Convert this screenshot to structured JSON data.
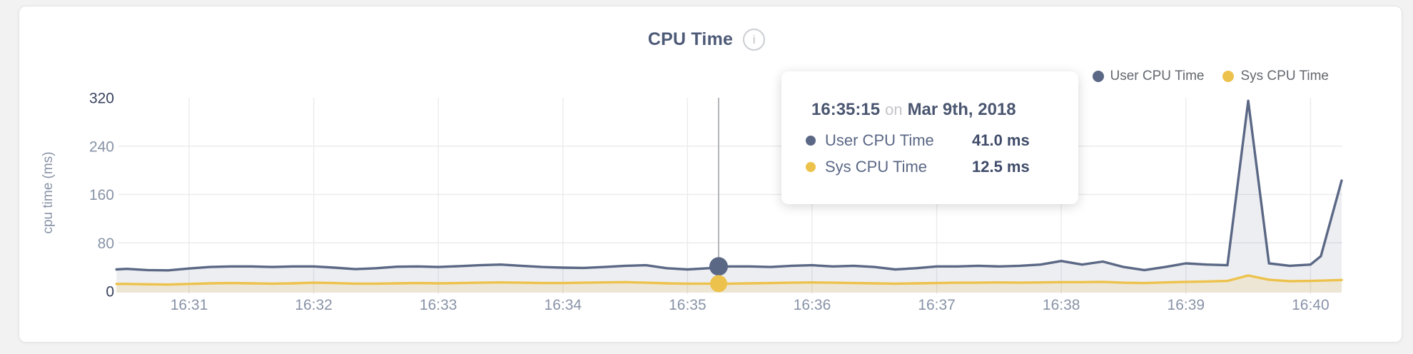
{
  "card": {
    "title": "CPU Time"
  },
  "legend": {
    "items": [
      {
        "label": "User CPU Time",
        "color": "#5b6885"
      },
      {
        "label": "Sys CPU Time",
        "color": "#edc24c"
      }
    ]
  },
  "tooltip": {
    "time": "16:35:15",
    "connector": "on",
    "date": "Mar 9th, 2018",
    "rows": [
      {
        "label": "User CPU Time",
        "value": "41.0 ms",
        "color": "#5b6885"
      },
      {
        "label": "Sys CPU Time",
        "value": "12.5 ms",
        "color": "#edc24c"
      }
    ]
  },
  "chart_data": {
    "type": "line",
    "title": "CPU Time",
    "xlabel": "",
    "ylabel": "cpu time (ms)",
    "ylim": [
      0,
      320
    ],
    "yticks": [
      0,
      80,
      160,
      240,
      320
    ],
    "xticks": [
      "16:31",
      "16:32",
      "16:33",
      "16:34",
      "16:35",
      "16:36",
      "16:37",
      "16:38",
      "16:39",
      "16:40"
    ],
    "grid": true,
    "legend_position": "top-right",
    "unit": "ms",
    "hover": {
      "time": "16:35:15",
      "values": {
        "User CPU Time": 41.0,
        "Sys CPU Time": 12.5
      }
    },
    "colors": {
      "axis_text": "#8893a7",
      "axis_text_strong": "#39425e",
      "gridline": "#ebebee",
      "hover_line": "#b3b5b8"
    },
    "series": [
      {
        "name": "User CPU Time",
        "color": "#5b6885",
        "fill": "rgba(90,103,133,0.11)",
        "points": [
          [
            "16:30:25",
            36
          ],
          [
            "16:30:30",
            37
          ],
          [
            "16:30:40",
            35
          ],
          [
            "16:30:50",
            34.5
          ],
          [
            "16:31:00",
            37.5
          ],
          [
            "16:31:10",
            40
          ],
          [
            "16:31:20",
            41
          ],
          [
            "16:31:30",
            41
          ],
          [
            "16:31:40",
            40
          ],
          [
            "16:31:50",
            41
          ],
          [
            "16:32:00",
            41
          ],
          [
            "16:32:10",
            39
          ],
          [
            "16:32:20",
            36.5
          ],
          [
            "16:32:30",
            38
          ],
          [
            "16:32:40",
            40.5
          ],
          [
            "16:32:50",
            41
          ],
          [
            "16:33:00",
            40
          ],
          [
            "16:33:10",
            41.5
          ],
          [
            "16:33:20",
            43
          ],
          [
            "16:33:30",
            44
          ],
          [
            "16:33:40",
            42
          ],
          [
            "16:33:50",
            40
          ],
          [
            "16:34:00",
            39
          ],
          [
            "16:34:10",
            38.5
          ],
          [
            "16:34:20",
            40
          ],
          [
            "16:34:30",
            42
          ],
          [
            "16:34:40",
            43
          ],
          [
            "16:34:50",
            38
          ],
          [
            "16:35:00",
            36
          ],
          [
            "16:35:10",
            38
          ],
          [
            "16:35:20",
            41
          ],
          [
            "16:35:30",
            41
          ],
          [
            "16:35:40",
            40
          ],
          [
            "16:35:50",
            42
          ],
          [
            "16:36:00",
            43
          ],
          [
            "16:36:10",
            41
          ],
          [
            "16:36:20",
            42
          ],
          [
            "16:36:30",
            40
          ],
          [
            "16:36:40",
            36
          ],
          [
            "16:36:50",
            38
          ],
          [
            "16:37:00",
            41
          ],
          [
            "16:37:10",
            41
          ],
          [
            "16:37:20",
            42
          ],
          [
            "16:37:30",
            41
          ],
          [
            "16:37:40",
            42
          ],
          [
            "16:37:50",
            44
          ],
          [
            "16:38:00",
            50
          ],
          [
            "16:38:10",
            44
          ],
          [
            "16:38:20",
            49
          ],
          [
            "16:38:30",
            40
          ],
          [
            "16:38:40",
            35
          ],
          [
            "16:38:50",
            40
          ],
          [
            "16:39:00",
            46
          ],
          [
            "16:39:10",
            44
          ],
          [
            "16:39:20",
            43
          ],
          [
            "16:39:30",
            315
          ],
          [
            "16:39:40",
            46
          ],
          [
            "16:39:50",
            42
          ],
          [
            "16:40:00",
            44
          ],
          [
            "16:40:05",
            58
          ],
          [
            "16:40:15",
            183
          ]
        ]
      },
      {
        "name": "Sys CPU Time",
        "color": "#edc24c",
        "fill": "rgba(237,194,76,0.18)",
        "points": [
          [
            "16:30:25",
            12
          ],
          [
            "16:30:30",
            12
          ],
          [
            "16:30:40",
            11.5
          ],
          [
            "16:30:50",
            11
          ],
          [
            "16:31:00",
            12
          ],
          [
            "16:31:10",
            13
          ],
          [
            "16:31:20",
            13.5
          ],
          [
            "16:31:30",
            13
          ],
          [
            "16:31:40",
            12.5
          ],
          [
            "16:31:50",
            13
          ],
          [
            "16:32:00",
            14
          ],
          [
            "16:32:10",
            13.5
          ],
          [
            "16:32:20",
            12.5
          ],
          [
            "16:32:30",
            12.5
          ],
          [
            "16:32:40",
            13
          ],
          [
            "16:32:50",
            13.5
          ],
          [
            "16:33:00",
            13
          ],
          [
            "16:33:10",
            13.5
          ],
          [
            "16:33:20",
            14
          ],
          [
            "16:33:30",
            14.5
          ],
          [
            "16:33:40",
            14
          ],
          [
            "16:33:50",
            13.5
          ],
          [
            "16:34:00",
            13.5
          ],
          [
            "16:34:10",
            14
          ],
          [
            "16:34:20",
            14.5
          ],
          [
            "16:34:30",
            15
          ],
          [
            "16:34:40",
            14
          ],
          [
            "16:34:50",
            13
          ],
          [
            "16:35:00",
            12.5
          ],
          [
            "16:35:10",
            12.5
          ],
          [
            "16:35:20",
            12.5
          ],
          [
            "16:35:30",
            13
          ],
          [
            "16:35:40",
            13.5
          ],
          [
            "16:35:50",
            14
          ],
          [
            "16:36:00",
            14.5
          ],
          [
            "16:36:10",
            14
          ],
          [
            "16:36:20",
            13.5
          ],
          [
            "16:36:30",
            13
          ],
          [
            "16:36:40",
            12.5
          ],
          [
            "16:36:50",
            13
          ],
          [
            "16:37:00",
            13.5
          ],
          [
            "16:37:10",
            14
          ],
          [
            "16:37:20",
            14
          ],
          [
            "16:37:30",
            14.5
          ],
          [
            "16:37:40",
            14
          ],
          [
            "16:37:50",
            14.5
          ],
          [
            "16:38:00",
            15
          ],
          [
            "16:38:10",
            15
          ],
          [
            "16:38:20",
            15.5
          ],
          [
            "16:38:30",
            14
          ],
          [
            "16:38:40",
            13.5
          ],
          [
            "16:38:50",
            14.5
          ],
          [
            "16:39:00",
            15.5
          ],
          [
            "16:39:10",
            16
          ],
          [
            "16:39:20",
            17
          ],
          [
            "16:39:30",
            26
          ],
          [
            "16:39:40",
            19
          ],
          [
            "16:39:50",
            16.5
          ],
          [
            "16:40:00",
            17
          ],
          [
            "16:40:05",
            17.5
          ],
          [
            "16:40:15",
            18.5
          ]
        ]
      }
    ]
  }
}
